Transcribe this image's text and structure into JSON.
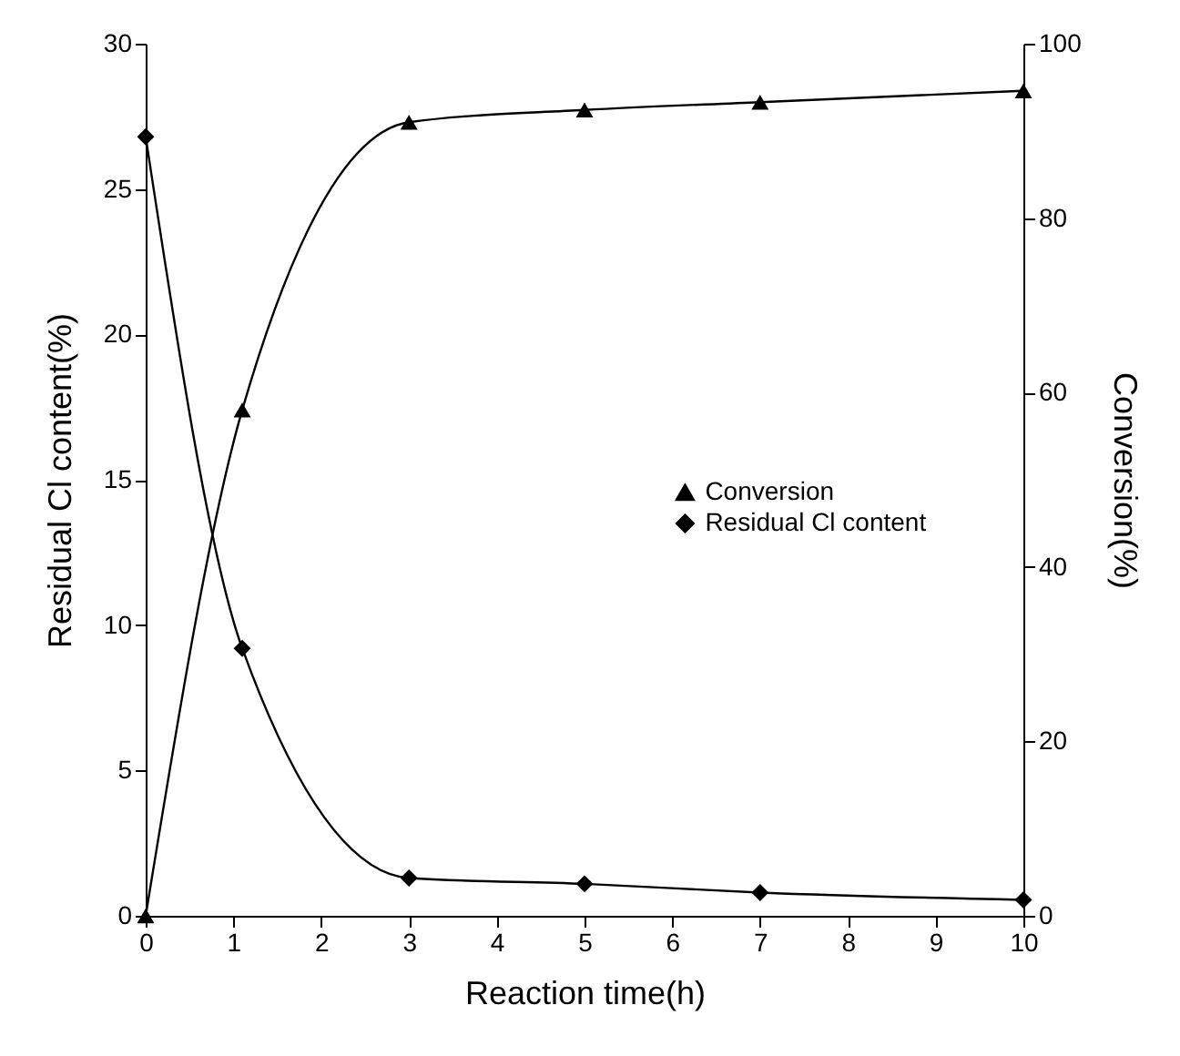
{
  "chart_data": {
    "type": "line",
    "xlabel": "Reaction time(h)",
    "ylabel": "Residual Cl content(%)",
    "y2label": "Conversion(%)",
    "xlim": [
      0,
      10
    ],
    "xticks": [
      0,
      1,
      2,
      3,
      4,
      5,
      6,
      7,
      8,
      9,
      10
    ],
    "ylim": [
      0,
      30
    ],
    "yticks": [
      0,
      5,
      10,
      15,
      20,
      25,
      30
    ],
    "y2lim": [
      0,
      100
    ],
    "y2ticks": [
      0,
      20,
      40,
      60,
      80,
      100
    ],
    "x": [
      0,
      1.1,
      3,
      5,
      7,
      10
    ],
    "series": [
      {
        "name": "Conversion",
        "color": "#000000",
        "axis": "y2",
        "marker": "triangle",
        "values": [
          0,
          58,
          91,
          92.4,
          93.3,
          94.6
        ]
      },
      {
        "name": "Residual Cl content",
        "color": "#000000",
        "marker": "diamond",
        "values": [
          26.8,
          9.2,
          1.3,
          1.1,
          0.8,
          0.55
        ]
      }
    ],
    "grid": false,
    "legend": "right"
  }
}
